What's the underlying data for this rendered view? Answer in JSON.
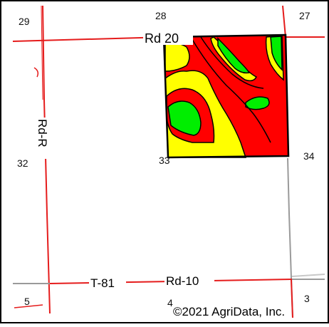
{
  "map": {
    "section_numbers": [
      "29",
      "28",
      "27",
      "32",
      "33",
      "34",
      "5",
      "4",
      "3"
    ],
    "road_labels": {
      "rd_20": "Rd 20",
      "rd_r": "Rd-R",
      "rd_10": "Rd-10",
      "t_81": "T-81"
    },
    "copyright": "©2021 AgriData, Inc."
  },
  "colors": {
    "road_red": "#e51c1c",
    "road_gray": "#9a9a9a",
    "zone_red": "#ff0000",
    "zone_yellow": "#ffff00",
    "zone_green": "#00ee00",
    "border": "#000000"
  }
}
